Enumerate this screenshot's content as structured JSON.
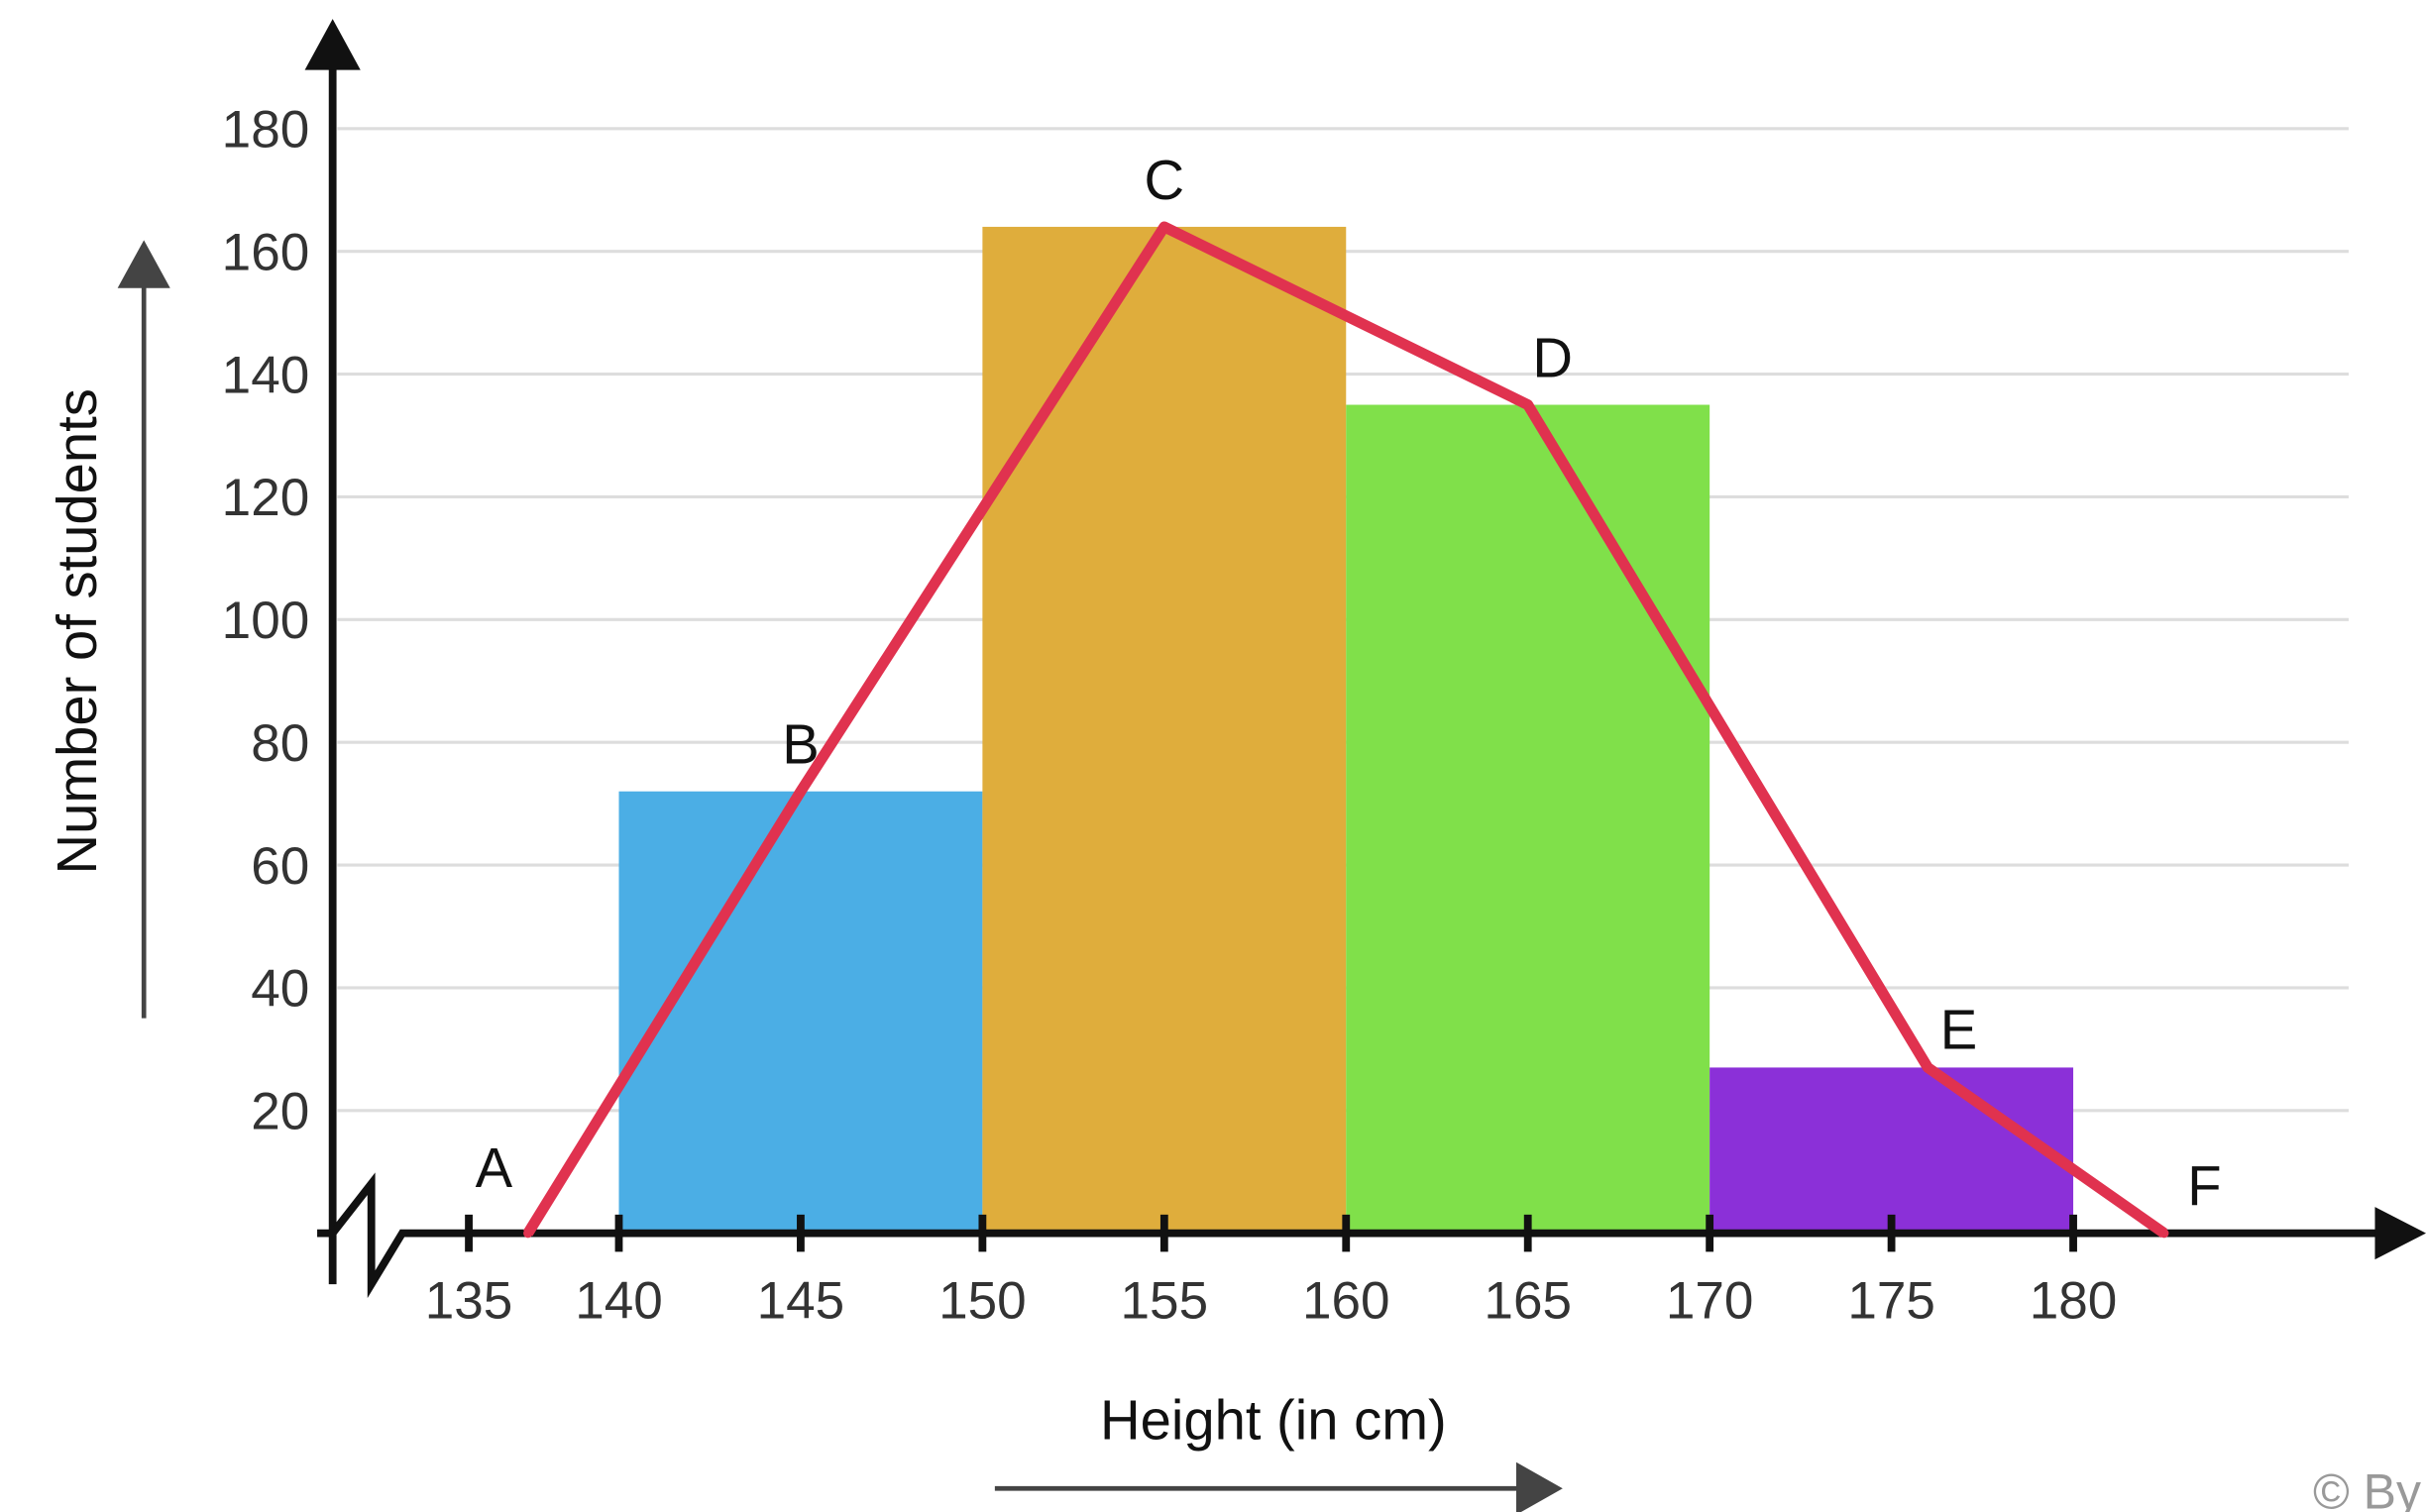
{
  "chart_data": {
    "type": "bar",
    "subtype": "histogram-with-frequency-polygon",
    "title": "",
    "xlabel": "Height (in cm)",
    "ylabel": "Number of students",
    "x_ticks": [
      135,
      140,
      145,
      150,
      155,
      160,
      165,
      170,
      175,
      180
    ],
    "y_ticks": [
      20,
      40,
      60,
      80,
      100,
      120,
      140,
      160,
      180
    ],
    "ylim": [
      0,
      180
    ],
    "xlim": [
      135,
      185
    ],
    "grid": "horizontal",
    "axis_break": "x and y near origin",
    "bars": [
      {
        "from": 140,
        "to": 150,
        "value": 72,
        "color": "#4BAEE5"
      },
      {
        "from": 150,
        "to": 160,
        "value": 164,
        "color": "#DFAD3C"
      },
      {
        "from": 160,
        "to": 170,
        "value": 135,
        "color": "#80E04A"
      },
      {
        "from": 170,
        "to": 180,
        "value": 27,
        "color": "#8B30D8"
      }
    ],
    "polygon": {
      "color": "#E0324F",
      "points": [
        {
          "label": "A",
          "x": 137.5,
          "y": 0
        },
        {
          "label": "B",
          "x": 145,
          "y": 72
        },
        {
          "label": "C",
          "x": 155,
          "y": 164
        },
        {
          "label": "D",
          "x": 165,
          "y": 135
        },
        {
          "label": "E",
          "x": 176,
          "y": 27
        },
        {
          "label": "F",
          "x": 182.5,
          "y": 0
        }
      ]
    },
    "copyright": "© By"
  }
}
